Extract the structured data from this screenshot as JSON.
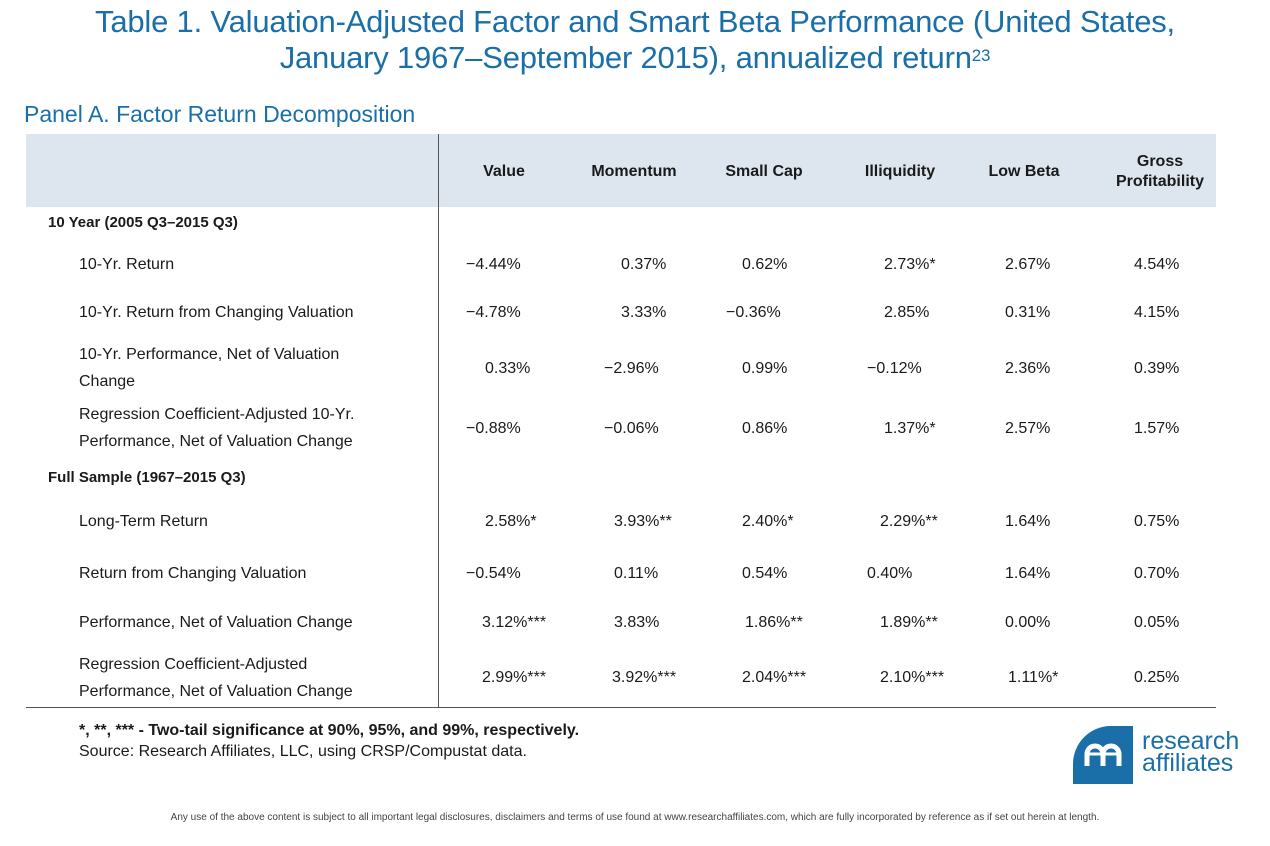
{
  "title": {
    "line1": "Table 1. Valuation-Adjusted Factor and Smart Beta Performance (United States,",
    "line2": "January 1967–September 2015), annualized return",
    "footnote_ref": "23"
  },
  "panel_title": "Panel A. Factor Return Decomposition",
  "columns": [
    {
      "line1": "Value",
      "line2": ""
    },
    {
      "line1": "Momentum",
      "line2": ""
    },
    {
      "line1": "Small Cap",
      "line2": ""
    },
    {
      "line1": "Illiquidity",
      "line2": ""
    },
    {
      "line1": "Low Beta",
      "line2": ""
    },
    {
      "line1": "Gross",
      "line2": "Profitability"
    }
  ],
  "sections": [
    {
      "label": "10 Year (2005 Q3–2015 Q3)",
      "rows": [
        {
          "label_l1": "10-Yr. Return",
          "label_l2": "",
          "values": [
            "−4.44%",
            "0.37%",
            "0.62%",
            "2.73%*",
            "2.67%",
            "4.54%"
          ]
        },
        {
          "label_l1": "10-Yr. Return from Changing Valuation",
          "label_l2": "",
          "values": [
            "−4.78%",
            "3.33%",
            "−0.36%",
            "2.85%",
            "0.31%",
            "4.15%"
          ]
        },
        {
          "label_l1": "10-Yr. Performance, Net of Valuation",
          "label_l2": "Change",
          "values": [
            "0.33%",
            "−2.96%",
            "0.99%",
            "−0.12%",
            "2.36%",
            "0.39%"
          ]
        },
        {
          "label_l1": "Regression Coefficient-Adjusted 10-Yr.",
          "label_l2": "Performance, Net of Valuation Change",
          "values": [
            "−0.88%",
            "−0.06%",
            "0.86%",
            "1.37%*",
            "2.57%",
            "1.57%"
          ]
        }
      ]
    },
    {
      "label": "Full Sample (1967–2015 Q3)",
      "rows": [
        {
          "label_l1": "Long-Term Return",
          "label_l2": "",
          "values": [
            "2.58%*",
            "3.93%**",
            "2.40%*",
            "2.29%**",
            "1.64%",
            "0.75%"
          ]
        },
        {
          "label_l1": "Return from Changing Valuation",
          "label_l2": "",
          "values": [
            "−0.54%",
            "0.11%",
            "0.54%",
            "0.40%",
            "1.64%",
            "0.70%"
          ]
        },
        {
          "label_l1": "Performance, Net of Valuation Change",
          "label_l2": "",
          "values": [
            "3.12%***",
            "3.83%",
            "1.86%**",
            "1.89%**",
            "0.00%",
            "0.05%"
          ]
        },
        {
          "label_l1": "Regression Coefficient-Adjusted",
          "label_l2": "Performance, Net of Valuation Change",
          "values": [
            "2.99%***",
            "3.92%***",
            "2.04%***",
            "2.10%***",
            "1.11%*",
            "0.25%"
          ]
        }
      ]
    }
  ],
  "notes": {
    "significance": "*, **, *** - Two-tail significance at 90%, 95%, and 99%, respectively.",
    "source": "Source: Research Affiliates, LLC, using CRSP/Compustat data."
  },
  "logo": {
    "line1": "research",
    "line2": "affiliates",
    "icon": "research-affiliates-logo-icon"
  },
  "disclaimer": "Any use of the above content is subject to all important legal disclosures, disclaimers and terms of use found at www.researchaffiliates.com, which are fully incorporated by reference as if set out herein at length.",
  "colors": {
    "accent": "#1a6fa8",
    "header_band": "#dde6ef"
  }
}
